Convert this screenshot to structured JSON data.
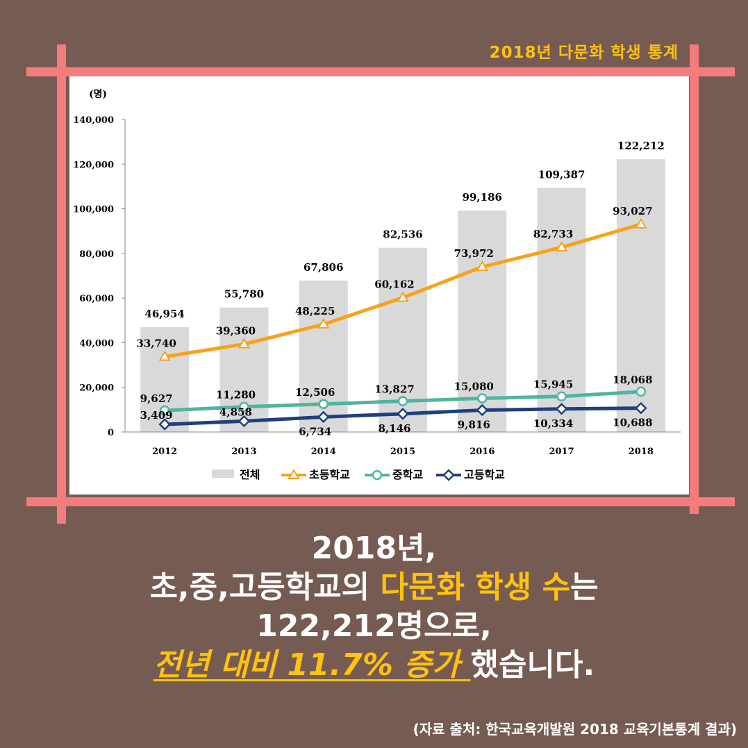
{
  "header": {
    "badge": "2018년 다문화 학생 통계"
  },
  "chart_data": {
    "type": "bar+line",
    "unit_label": "(명)",
    "categories": [
      "2012",
      "2013",
      "2014",
      "2015",
      "2016",
      "2017",
      "2018"
    ],
    "ylim": [
      0,
      140000
    ],
    "yticks": [
      "0",
      "20,000",
      "40,000",
      "60,000",
      "80,000",
      "100,000",
      "120,000",
      "140,000"
    ],
    "bars": {
      "name": "전체",
      "values": [
        46954,
        55780,
        67806,
        82536,
        99186,
        109387,
        122212
      ],
      "labels": [
        "46,954",
        "55,780",
        "67,806",
        "82,536",
        "99,186",
        "109,387",
        "122,212"
      ],
      "color": "#d9d9d9"
    },
    "series": [
      {
        "name": "초등학교",
        "values": [
          33740,
          39360,
          48225,
          60162,
          73972,
          82733,
          93027
        ],
        "labels": [
          "33,740",
          "39,360",
          "48,225",
          "60,162",
          "73,972",
          "82,733",
          "93,027"
        ],
        "color": "#f7a21b",
        "marker": "triangle"
      },
      {
        "name": "중학교",
        "values": [
          9627,
          11280,
          12506,
          13827,
          15080,
          15945,
          18068
        ],
        "labels": [
          "9,627",
          "11,280",
          "12,506",
          "13,827",
          "15,080",
          "15,945",
          "18,068"
        ],
        "color": "#4fb5a0",
        "marker": "circle"
      },
      {
        "name": "고등학교",
        "values": [
          3409,
          4858,
          6734,
          8146,
          9816,
          10334,
          10688
        ],
        "labels": [
          "3,409",
          "4,858",
          "6,734",
          "8,146",
          "9,816",
          "10,334",
          "10,688"
        ],
        "color": "#1f3f7d",
        "marker": "diamond"
      }
    ],
    "legend": "bottom"
  },
  "caption": {
    "line1": "2018년,",
    "line2_pre": "초,중,고등학교의 ",
    "line2_hl": "다문화 학생 수",
    "line2_post": "는",
    "line3": "122,212명으로,",
    "line4_em": "전년 대비 11.7% 증가 ",
    "line4_post": "했습니다."
  },
  "source": "(자료 출처: 한국교육개발원 2018 교육기본통계 결과)"
}
